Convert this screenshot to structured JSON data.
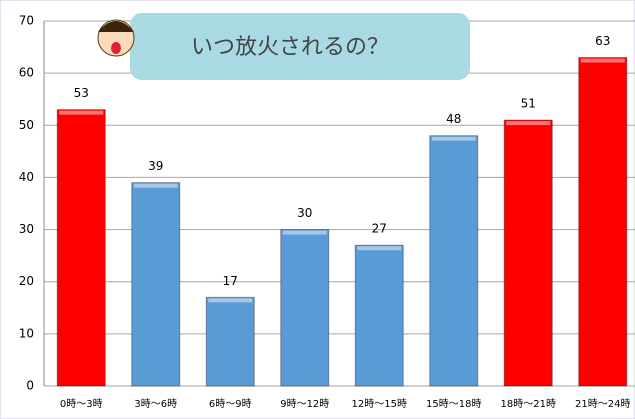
{
  "chart_data": {
    "type": "bar",
    "title": "いつ放火されるの？",
    "categories": [
      "0時〜3時",
      "3時〜6時",
      "6時〜9時",
      "9時〜12時",
      "12時〜15時",
      "15時〜18時",
      "18時〜21時",
      "21時〜24時"
    ],
    "values": [
      53,
      39,
      17,
      30,
      27,
      48,
      51,
      63
    ],
    "colors": [
      "#ff0000",
      "#5b9bd5",
      "#5b9bd5",
      "#5b9bd5",
      "#5b9bd5",
      "#5b9bd5",
      "#ff0000",
      "#ff0000"
    ],
    "ylim": [
      0,
      70
    ],
    "yticks": [
      0,
      10,
      20,
      30,
      40,
      50,
      60,
      70
    ],
    "grid": true
  }
}
